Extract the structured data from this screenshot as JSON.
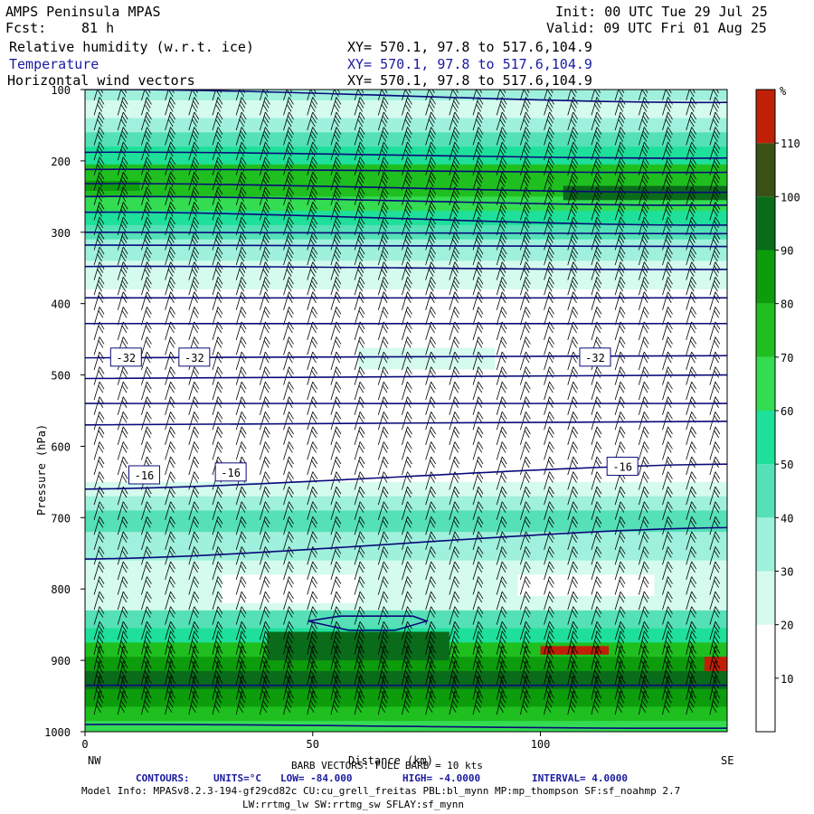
{
  "header": {
    "model": "AMPS Peninsula MPAS",
    "init": "Init: 00 UTC Tue 29 Jul 25",
    "fcst_label": "Fcst:",
    "fcst_value": "81 h",
    "valid": "Valid: 09 UTC Fri 01 Aug 25",
    "field1": "Relative humidity (w.r.t. ice)",
    "field2": "Temperature",
    "field3": "Horizontal wind vectors",
    "xy": "XY= 570.1, 97.8 to 517.6,104.9"
  },
  "footer": {
    "barb_note": "BARB VECTORS: FULL BARB = 10 kts",
    "contours_label": "CONTOURS:",
    "units": "UNITS=°C",
    "low": "LOW= -84.000",
    "high": "HIGH= -4.0000",
    "interval": "INTERVAL= 4.0000",
    "model_info": "Model Info: MPASv8.2.3-194-gf29cd82c CU:cu_grell_freitas PBL:bl_mynn MP:mp_thompson SF:sf_noahmp 2.7",
    "model_info2": "LW:rrtmg_lw SW:rrtmg_sw SFLAY:sf_mynn"
  },
  "colors": {
    "contour": "#0a0a7a",
    "rh_scale": [
      "#ffffff",
      "#ffffff",
      "#ffffff",
      "#d4fbee",
      "#9ff0dc",
      "#55e0b8",
      "#1ee09a",
      "#34dc52",
      "#1fbf1f",
      "#0c9c0c",
      "#0a6c1a",
      "#3a5014",
      "#c02008"
    ]
  },
  "chart_data": {
    "type": "heatmap",
    "title": "Relative humidity (w.r.t. ice); Temperature; Horizontal wind vectors",
    "xlabel": "Distance (km)",
    "ylabel": "Pressure (hPa)",
    "xlim": [
      0,
      141
    ],
    "ylim": [
      1000,
      100
    ],
    "x_ticks": [
      "0",
      "50",
      "100"
    ],
    "y_ticks": [
      "100",
      "200",
      "300",
      "400",
      "500",
      "600",
      "700",
      "800",
      "900",
      "1000"
    ],
    "x_ends": [
      "NW",
      "SE"
    ],
    "colorbar_unit": "%",
    "colorbar_levels": [
      "10",
      "20",
      "30",
      "40",
      "50",
      "60",
      "70",
      "80",
      "90",
      "100",
      "110"
    ],
    "temperature_contour_labels": [
      {
        "text": "-32",
        "x": 9,
        "p": 475
      },
      {
        "text": "-32",
        "x": 24,
        "p": 475
      },
      {
        "text": "-32",
        "x": 112,
        "p": 475
      },
      {
        "text": "-16",
        "x": 13,
        "p": 640
      },
      {
        "text": "-16",
        "x": 32,
        "p": 636
      },
      {
        "text": "-16",
        "x": 118,
        "p": 628
      }
    ],
    "rh_regions_percent": [
      {
        "p_range": [
          100,
          160
        ],
        "rh": "30-40"
      },
      {
        "p_range": [
          160,
          300
        ],
        "rh": "50-90"
      },
      {
        "p_range": [
          300,
          380
        ],
        "rh": "30-50"
      },
      {
        "p_range": [
          380,
          650
        ],
        "rh": "<30"
      },
      {
        "p_range": [
          650,
          820
        ],
        "rh": "30-50"
      },
      {
        "p_range": [
          820,
          880
        ],
        "rh": "50-80"
      },
      {
        "p_range": [
          880,
          1000
        ],
        "rh": "90-110"
      }
    ]
  }
}
